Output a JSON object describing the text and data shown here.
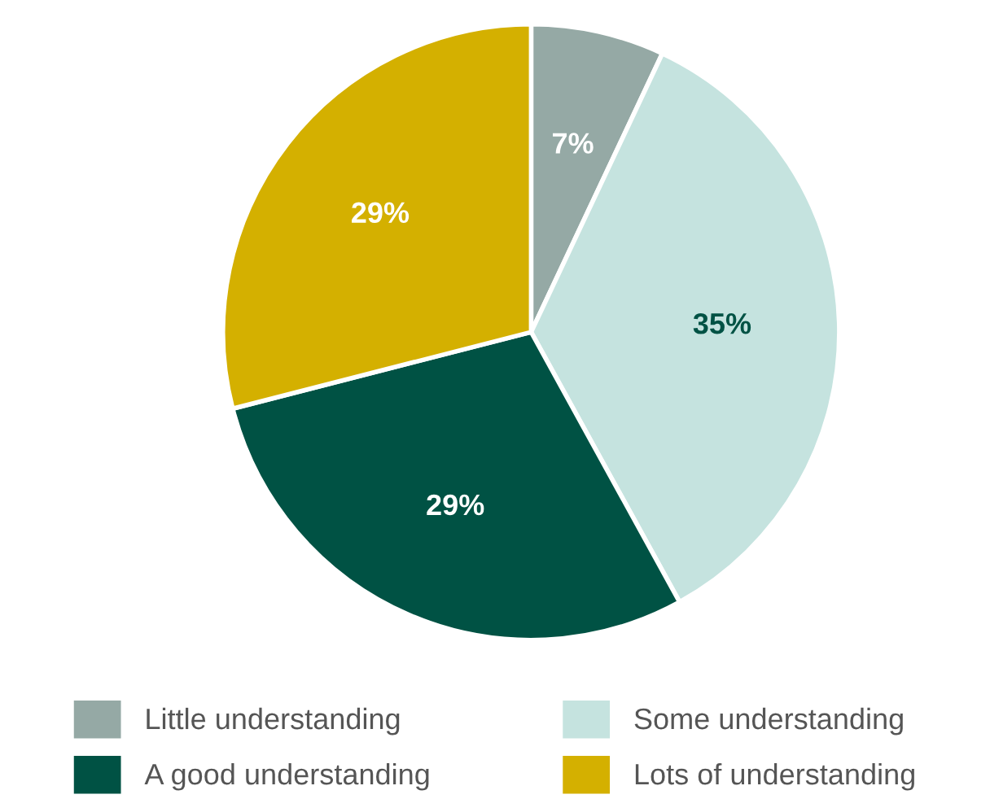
{
  "chart_data": {
    "type": "pie",
    "categories": [
      "Little understanding",
      "Some understanding",
      "A good understanding",
      "Lots of understanding"
    ],
    "values": [
      7,
      35,
      29,
      29
    ],
    "colors": [
      "#95a9a5",
      "#c5e3df",
      "#005244",
      "#d4b000"
    ],
    "value_labels": [
      "7%",
      "35%",
      "29%",
      "29%"
    ],
    "legend": "bottom"
  }
}
